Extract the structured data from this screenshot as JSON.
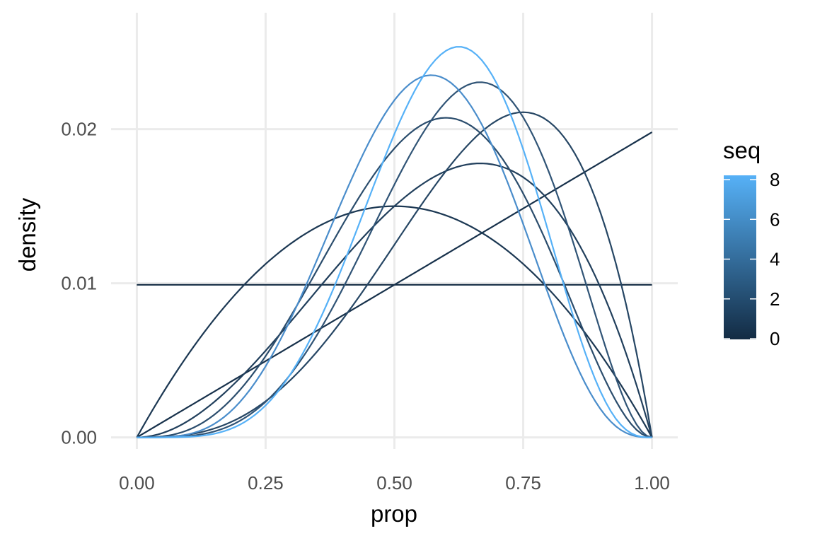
{
  "chart_data": {
    "type": "line",
    "title": "",
    "xlabel": "prop",
    "ylabel": "density",
    "xlim": [
      -0.05,
      1.05
    ],
    "ylim": [
      -0.00075,
      0.027
    ],
    "x_ticks": [
      0.0,
      0.25,
      0.5,
      0.75,
      1.0
    ],
    "x_tick_labels": [
      "0.00",
      "0.25",
      "0.50",
      "0.75",
      "1.00"
    ],
    "y_ticks": [
      0.0,
      0.01,
      0.02
    ],
    "y_tick_labels": [
      "0.00",
      "0.01",
      "0.02"
    ],
    "grid": true,
    "legend": {
      "title": "seq",
      "placement": "right",
      "type": "colorbar",
      "range": [
        0,
        8
      ],
      "ticks": [
        0,
        2,
        4,
        6,
        8
      ],
      "tick_labels": [
        "0",
        "2",
        "4",
        "6",
        "8"
      ],
      "color_low": "#132B43",
      "color_high": "#56B1F7"
    },
    "series": [
      {
        "seq": 0,
        "shape": [
          0,
          0
        ],
        "color": "#132B43",
        "x": [
          0.0,
          0.25,
          0.5,
          0.75,
          1.0
        ],
        "y": [
          0.01,
          0.01,
          0.01,
          0.01,
          0.01
        ]
      },
      {
        "seq": 1,
        "shape": [
          1,
          0
        ],
        "color": "#17314B",
        "x": [
          0.0,
          0.25,
          0.5,
          0.75,
          1.0
        ],
        "y": [
          0.0,
          0.005,
          0.01,
          0.015,
          0.02
        ]
      },
      {
        "seq": 2,
        "shape": [
          1,
          1
        ],
        "color": "#1C3853",
        "x": [
          0.0,
          0.25,
          0.5,
          0.75,
          1.0
        ],
        "y": [
          0.0,
          0.01125,
          0.015,
          0.01125,
          0.0
        ]
      },
      {
        "seq": 3,
        "shape": [
          2,
          1
        ],
        "color": "#213F5C",
        "x": [
          0.0,
          0.25,
          0.5,
          0.6667,
          0.75,
          1.0
        ],
        "y": [
          0.0,
          0.005625,
          0.015,
          0.01778,
          0.016875,
          0.0
        ]
      },
      {
        "seq": 4,
        "shape": [
          3,
          1
        ],
        "color": "#264664",
        "x": [
          0.0,
          0.25,
          0.5,
          0.75,
          1.0
        ],
        "y": [
          0.0,
          0.001875,
          0.01,
          0.02109,
          0.0
        ]
      },
      {
        "seq": 5,
        "shape": [
          3,
          2
        ],
        "color": "#2B4D6D",
        "x": [
          0.0,
          0.25,
          0.5,
          0.6,
          0.75,
          1.0
        ],
        "y": [
          0.0,
          0.002813,
          0.01875,
          0.02074,
          0.01582,
          0.0
        ]
      },
      {
        "seq": 6,
        "shape": [
          4,
          2
        ],
        "color": "#305476",
        "x": [
          0.0,
          0.25,
          0.5,
          0.6667,
          0.75,
          1.0
        ],
        "y": [
          0.0,
          0.00117,
          0.01563,
          0.02305,
          0.02197,
          0.0
        ]
      },
      {
        "seq": 7,
        "shape": [
          4,
          3
        ],
        "color": "#4A8DCB",
        "x": [
          0.0,
          0.25,
          0.5,
          0.5714,
          0.75,
          1.0
        ],
        "y": [
          0.0,
          0.001373,
          0.02188,
          0.02355,
          0.01384,
          0.0
        ]
      },
      {
        "seq": 8,
        "shape": [
          5,
          3
        ],
        "color": "#56B1F7",
        "x": [
          0.0,
          0.25,
          0.5,
          0.625,
          0.75,
          1.0
        ],
        "y": [
          0.0,
          0.000515,
          0.01641,
          0.02568,
          0.0208,
          0.0
        ]
      }
    ]
  }
}
